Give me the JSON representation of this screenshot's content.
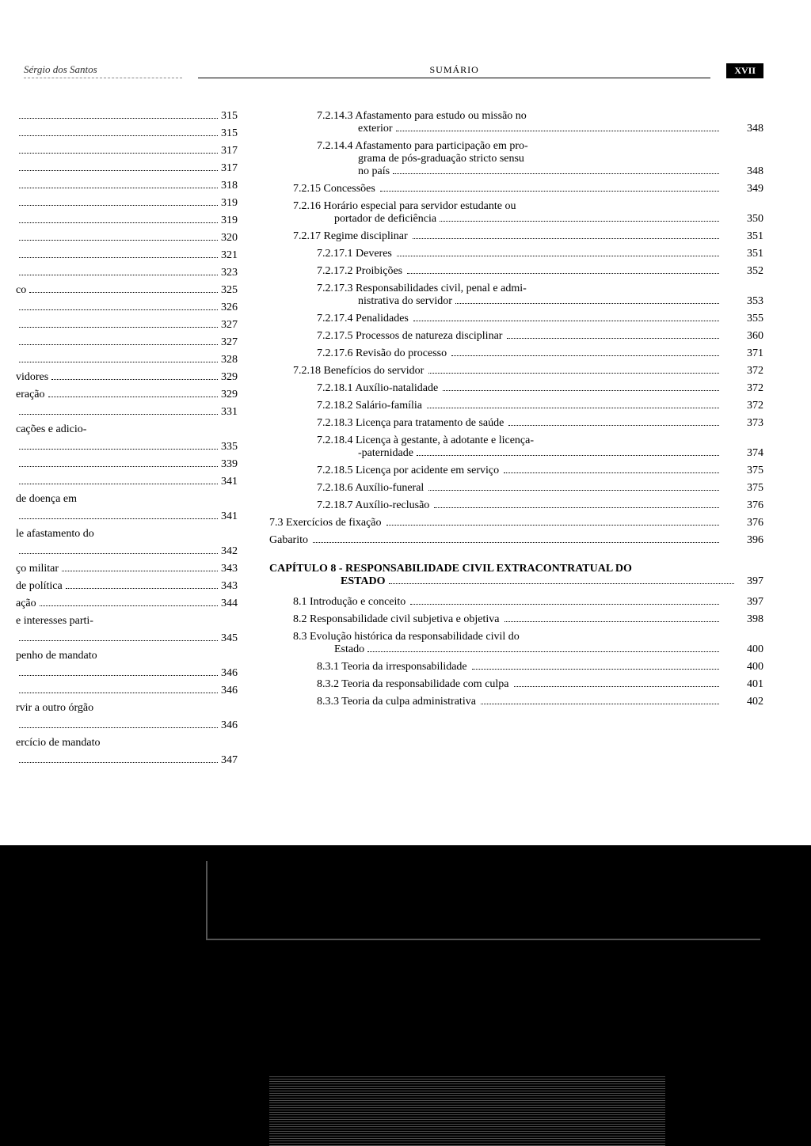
{
  "header": {
    "left": "Sérgio dos Santos",
    "center": "SUMÁRIO",
    "right": "XVII"
  },
  "left_items": [
    {
      "label": "",
      "page": "315"
    },
    {
      "label": "",
      "page": "315"
    },
    {
      "label": "",
      "page": "317"
    },
    {
      "label": "",
      "page": "317"
    },
    {
      "label": "",
      "page": "318"
    },
    {
      "label": "",
      "page": "319"
    },
    {
      "label": "",
      "page": "319"
    },
    {
      "label": "",
      "page": "320"
    },
    {
      "label": "",
      "page": "321"
    },
    {
      "label": "",
      "page": "323"
    },
    {
      "label": "co",
      "page": "325"
    },
    {
      "label": "",
      "page": "326"
    },
    {
      "label": "",
      "page": "327"
    },
    {
      "label": "",
      "page": "327"
    },
    {
      "label": "",
      "page": "328"
    },
    {
      "label": "vidores",
      "page": "329"
    },
    {
      "label": "eração",
      "page": "329"
    },
    {
      "label": "",
      "page": "331"
    },
    {
      "label": "cações e adicio-",
      "page": ""
    },
    {
      "label": "",
      "page": "335"
    },
    {
      "label": "",
      "page": "339"
    },
    {
      "label": "",
      "page": "341"
    },
    {
      "label": "de doença em",
      "page": ""
    },
    {
      "label": "",
      "page": "341"
    },
    {
      "label": "le afastamento do",
      "page": ""
    },
    {
      "label": "",
      "page": "342"
    },
    {
      "label": "ço militar",
      "page": "343"
    },
    {
      "label": "de política",
      "page": "343"
    },
    {
      "label": "ação",
      "page": "344"
    },
    {
      "label": "e interesses parti-",
      "page": ""
    },
    {
      "label": "",
      "page": "345"
    },
    {
      "label": "penho de mandato",
      "page": ""
    },
    {
      "label": "",
      "page": "346"
    },
    {
      "label": "",
      "page": "346"
    },
    {
      "label": "rvir a outro órgão",
      "page": ""
    },
    {
      "label": "",
      "page": "346"
    },
    {
      "label": "ercício de mandato",
      "page": ""
    },
    {
      "label": "",
      "page": "347"
    }
  ],
  "right_items": [
    {
      "indent": 2,
      "text": "7.2.14.3 Afastamento para estudo ou missão no",
      "text2": "exterior",
      "page": "348"
    },
    {
      "indent": 2,
      "text": "7.2.14.4 Afastamento para participação em pro-",
      "text2": "grama de pós-graduação stricto sensu",
      "text3": "no país",
      "page": "348"
    },
    {
      "indent": 1,
      "text": "7.2.15 Concessões",
      "page": "349"
    },
    {
      "indent": 1,
      "text": "7.2.16 Horário especial para servidor estudante ou",
      "text2": "portador de deficiência",
      "page": "350"
    },
    {
      "indent": 1,
      "text": "7.2.17 Regime disciplinar",
      "page": "351"
    },
    {
      "indent": 2,
      "text": "7.2.17.1 Deveres",
      "page": "351"
    },
    {
      "indent": 2,
      "text": "7.2.17.2 Proibições",
      "page": "352"
    },
    {
      "indent": 2,
      "text": "7.2.17.3 Responsabilidades civil, penal e admi-",
      "text2": "nistrativa do servidor",
      "page": "353"
    },
    {
      "indent": 2,
      "text": "7.2.17.4 Penalidades",
      "page": "355"
    },
    {
      "indent": 2,
      "text": "7.2.17.5 Processos de natureza disciplinar",
      "page": "360"
    },
    {
      "indent": 2,
      "text": "7.2.17.6 Revisão do processo",
      "page": "371"
    },
    {
      "indent": 1,
      "text": "7.2.18 Benefícios do servidor",
      "page": "372"
    },
    {
      "indent": 2,
      "text": "7.2.18.1 Auxílio-natalidade",
      "page": "372"
    },
    {
      "indent": 2,
      "text": "7.2.18.2 Salário-família",
      "page": "372"
    },
    {
      "indent": 2,
      "text": "7.2.18.3 Licença para tratamento de saúde",
      "page": "373"
    },
    {
      "indent": 2,
      "text": "7.2.18.4 Licença à gestante, à adotante e licença-",
      "text2": "-paternidade",
      "page": "374"
    },
    {
      "indent": 2,
      "text": "7.2.18.5 Licença por acidente em serviço",
      "page": "375"
    },
    {
      "indent": 2,
      "text": "7.2.18.6 Auxílio-funeral",
      "page": "375"
    },
    {
      "indent": 2,
      "text": "7.2.18.7 Auxílio-reclusão",
      "page": "376"
    },
    {
      "indent": 0,
      "text": "7.3 Exercícios de fixação",
      "page": "376"
    },
    {
      "indent": 0,
      "text": "Gabarito",
      "page": "396"
    }
  ],
  "chapter": {
    "title": "CAPÍTULO 8 - RESPONSABILIDADE CIVIL EXTRACONTRATUAL DO",
    "estado": "ESTADO",
    "page": "397"
  },
  "chapter_items": [
    {
      "indent": 1,
      "text": "8.1 Introdução e conceito",
      "page": "397"
    },
    {
      "indent": 1,
      "text": "8.2 Responsabilidade civil subjetiva e objetiva",
      "page": "398"
    },
    {
      "indent": 1,
      "text": "8.3 Evolução histórica da responsabilidade civil do",
      "text2": "Estado",
      "page": "400"
    },
    {
      "indent": 2,
      "text": "8.3.1 Teoria da irresponsabilidade",
      "page": "400"
    },
    {
      "indent": 2,
      "text": "8.3.2 Teoria da responsabilidade com culpa",
      "page": "401"
    },
    {
      "indent": 2,
      "text": "8.3.3 Teoria da culpa administrativa",
      "page": "402"
    }
  ]
}
